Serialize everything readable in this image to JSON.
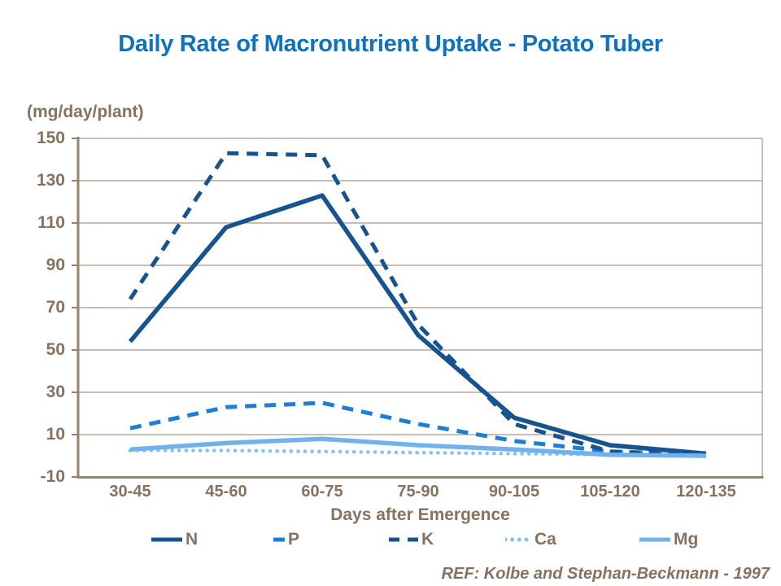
{
  "page": {
    "title": "Daily Rate of Macronutrient Uptake - Potato Tuber",
    "reference": "REF: Kolbe and Stephan-Beckmann - 1997"
  },
  "colors": {
    "title_blue": "#0e72bc",
    "axis_text": "#857260",
    "axis_line": "#93836f",
    "gridline": "#b7a99a",
    "dark_blue": "#17548f",
    "medium_blue": "#1d7dd7",
    "light_blue": "#71b2ec",
    "pale_blue": "#85c0f2"
  },
  "chart_data": {
    "type": "line",
    "title": "Daily Rate of Macronutrient Uptake - Potato Tuber",
    "unit_label": "(mg/day/plant)",
    "xlabel": "Days after Emergence",
    "ylabel": "",
    "categories": [
      "30-45",
      "45-60",
      "60-75",
      "75-90",
      "90-105",
      "105-120",
      "120-135"
    ],
    "y_ticks": [
      150,
      130,
      110,
      90,
      70,
      50,
      30,
      10,
      -10
    ],
    "ylim": [
      -10,
      150
    ],
    "grid": "horizontal",
    "legend_position": "bottom",
    "series": [
      {
        "name": "N",
        "style": "solid",
        "color": "#17548f",
        "values": [
          54,
          108,
          123,
          57,
          18,
          5,
          1
        ]
      },
      {
        "name": "P",
        "style": "dashed",
        "color": "#1d7dd7",
        "values": [
          13,
          23,
          25,
          15,
          7,
          2,
          0.5
        ]
      },
      {
        "name": "K",
        "style": "dashed",
        "color": "#17548f",
        "values": [
          74,
          143,
          142,
          62,
          15,
          2,
          0.5
        ]
      },
      {
        "name": "Ca",
        "style": "dotted",
        "color": "#85c0f2",
        "values": [
          2.5,
          2.5,
          2,
          1.5,
          1,
          0.5,
          0
        ]
      },
      {
        "name": "Mg",
        "style": "solid",
        "color": "#71b2ec",
        "values": [
          3,
          6,
          8,
          5,
          3,
          0.5,
          0
        ]
      }
    ]
  }
}
